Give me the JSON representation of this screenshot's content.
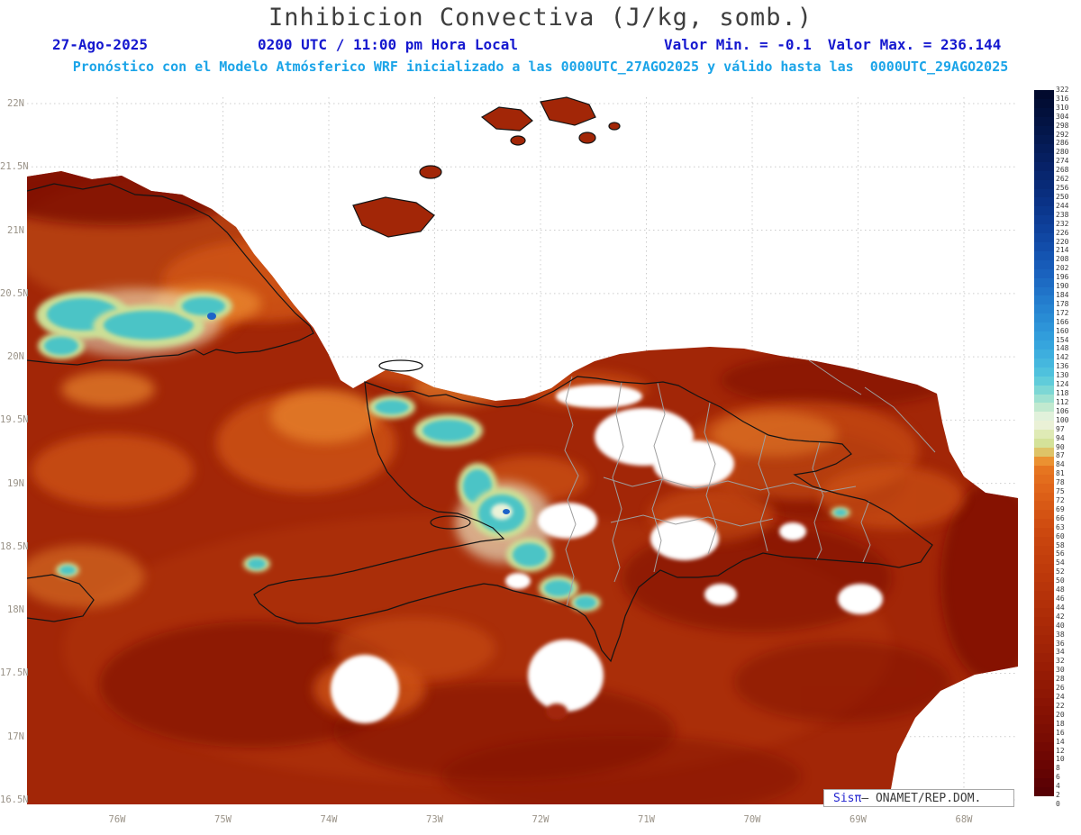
{
  "header": {
    "title": "Inhibicion Convectiva (J/kg, somb.)",
    "date": "27-Ago-2025",
    "time_line": "0200 UTC / 11:00 pm Hora Local",
    "valor_min": "Valor Min. = -0.1",
    "valor_max": "Valor Max. = 236.144",
    "model_line": "Pronóstico con el Modelo Atmósferico WRF inicializado a las 0000UTC_27AGO2025 y válido hasta las  0000UTC_29AGO2025"
  },
  "axes": {
    "lat_labels": [
      "22N",
      "21.5N",
      "21N",
      "20.5N",
      "20N",
      "19.5N",
      "19N",
      "18.5N",
      "18N",
      "17.5N",
      "17N",
      "16.5N"
    ],
    "lon_labels": [
      "76W",
      "75W",
      "74W",
      "73W",
      "72W",
      "71W",
      "70W",
      "69W",
      "68W"
    ]
  },
  "colorbar": {
    "values": [
      0,
      2,
      4,
      6,
      8,
      10,
      12,
      14,
      16,
      18,
      20,
      22,
      24,
      26,
      28,
      30,
      32,
      34,
      36,
      38,
      40,
      42,
      44,
      46,
      48,
      50,
      52,
      54,
      56,
      58,
      60,
      63,
      66,
      69,
      72,
      75,
      78,
      81,
      84,
      87,
      90,
      94,
      97,
      100,
      106,
      112,
      118,
      124,
      130,
      136,
      142,
      148,
      154,
      160,
      166,
      172,
      178,
      184,
      190,
      196,
      202,
      208,
      214,
      220,
      226,
      232,
      238,
      244,
      250,
      256,
      262,
      268,
      274,
      280,
      286,
      292,
      298,
      304,
      310,
      316,
      322
    ],
    "stops": [
      [
        0,
        "#ffffff"
      ],
      [
        2,
        "#ffffff"
      ],
      [
        3,
        "#570104"
      ],
      [
        10,
        "#6d0603"
      ],
      [
        20,
        "#841103"
      ],
      [
        30,
        "#971c05"
      ],
      [
        40,
        "#a92907"
      ],
      [
        50,
        "#ba360a"
      ],
      [
        60,
        "#ca450e"
      ],
      [
        68,
        "#d55413"
      ],
      [
        76,
        "#df6419"
      ],
      [
        84,
        "#e87922"
      ],
      [
        87,
        "#eda93f"
      ],
      [
        90,
        "#cfdd8e"
      ],
      [
        94,
        "#d9e6a4"
      ],
      [
        100,
        "#f0f5e6"
      ],
      [
        106,
        "#d2edcf"
      ],
      [
        112,
        "#b0e5cf"
      ],
      [
        118,
        "#8cdcd2"
      ],
      [
        124,
        "#6bd1d7"
      ],
      [
        130,
        "#54c6dc"
      ],
      [
        142,
        "#40b2de"
      ],
      [
        154,
        "#33a1dc"
      ],
      [
        166,
        "#2b90d6"
      ],
      [
        178,
        "#2480cf"
      ],
      [
        190,
        "#1e6fc6"
      ],
      [
        202,
        "#185ebb"
      ],
      [
        214,
        "#1350ae"
      ],
      [
        226,
        "#0f449f"
      ],
      [
        238,
        "#0c3991"
      ],
      [
        250,
        "#093082"
      ],
      [
        262,
        "#082873"
      ],
      [
        274,
        "#062064"
      ],
      [
        286,
        "#041a55"
      ],
      [
        298,
        "#031446"
      ],
      [
        310,
        "#020e38"
      ],
      [
        322,
        "#02092b"
      ]
    ]
  },
  "legend": {
    "brand": "Sisπ",
    "rest": "— ONAMET/REP.DOM."
  },
  "colors": {
    "title": "#3e3e3e",
    "header_blue": "#1518cf",
    "header_cyan": "#1ba4e8",
    "axis_label": "#9a9388",
    "cb_label": "#3a3a3a",
    "legend_border": "#a8a8a8",
    "legend_text": "#3a3a3a",
    "brand_blue": "#2526d0",
    "field_red": "#a22607",
    "field_red_dark": "#7c0e02",
    "field_orange": "#d05415",
    "field_orange_light": "#e9862f",
    "teal": "#4cc4c6",
    "teal_rim": "#ccdf96",
    "teal_pale": "#ebf2d8",
    "blue_spot": "#1d63c8",
    "coast": "#141414",
    "admin": "#9f9f9f",
    "grid": "#cccccc"
  },
  "chart_data": {
    "type": "heatmap",
    "title": "Inhibicion Convectiva (J/kg, somb.)",
    "units": "J/kg",
    "valor_min": -0.1,
    "valor_max": 236.144,
    "x_ticks": [
      "76W",
      "75W",
      "74W",
      "73W",
      "72W",
      "71W",
      "70W",
      "69W",
      "68W"
    ],
    "y_ticks": [
      "22N",
      "21.5N",
      "21N",
      "20.5N",
      "20N",
      "19.5N",
      "19N",
      "18.5N",
      "18N",
      "17.5N",
      "17N",
      "16.5N"
    ],
    "levels": [
      0,
      2,
      4,
      6,
      8,
      10,
      12,
      14,
      16,
      18,
      20,
      22,
      24,
      26,
      28,
      30,
      32,
      34,
      36,
      38,
      40,
      42,
      44,
      46,
      48,
      50,
      52,
      54,
      56,
      58,
      60,
      63,
      66,
      69,
      72,
      75,
      78,
      81,
      84,
      87,
      90,
      94,
      97,
      100,
      106,
      112,
      118,
      124,
      130,
      136,
      142,
      148,
      154,
      160,
      166,
      172,
      178,
      184,
      190,
      196,
      202,
      208,
      214,
      220,
      226,
      232,
      238,
      244,
      250,
      256,
      262,
      268,
      274,
      280,
      286,
      292,
      298,
      304,
      310,
      316,
      322
    ],
    "legend_position": "right-colorbar",
    "region": "Eastern Cuba, Hispaniola and surrounding waters (WRF model shaded CIN field; low values dark red, local maxima teal/cyan over mountains)"
  }
}
